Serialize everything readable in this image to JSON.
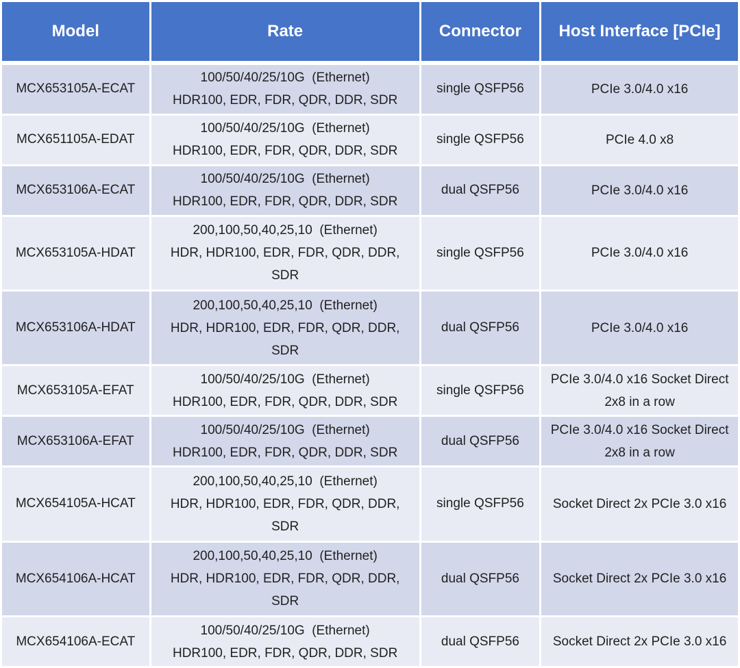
{
  "colors": {
    "header_bg": "#4674C8",
    "row_odd_bg": "#D3D7EA",
    "row_even_bg": "#E9EBF4",
    "header_text": "#FFFFFF",
    "body_text": "#212121",
    "grid": "#FFFFFF"
  },
  "chart_data": {
    "type": "table",
    "columns": [
      "Model",
      "Rate",
      "Connector",
      "Host Interface [PCIe]"
    ],
    "rows": [
      {
        "model": "MCX653105A-ECAT",
        "rate": [
          "100/50/40/25/10G  (Ethernet)",
          "HDR100, EDR, FDR, QDR, DDR, SDR"
        ],
        "connector": "single QSFP56",
        "host": [
          "PCIe 3.0/4.0 x16"
        ]
      },
      {
        "model": "MCX651105A-EDAT",
        "rate": [
          "100/50/40/25/10G  (Ethernet)",
          "HDR100, EDR, FDR, QDR, DDR, SDR"
        ],
        "connector": "single QSFP56",
        "host": [
          "PCIe 4.0 x8"
        ]
      },
      {
        "model": "MCX653106A-ECAT",
        "rate": [
          "100/50/40/25/10G  (Ethernet)",
          "HDR100, EDR, FDR, QDR, DDR, SDR"
        ],
        "connector": "dual QSFP56",
        "host": [
          "PCIe 3.0/4.0 x16"
        ]
      },
      {
        "model": "MCX653105A-HDAT",
        "rate": [
          "200,100,50,40,25,10  (Ethernet)",
          "HDR, HDR100, EDR, FDR, QDR, DDR, SDR"
        ],
        "connector": "single QSFP56",
        "host": [
          "PCIe 3.0/4.0 x16"
        ]
      },
      {
        "model": "MCX653106A-HDAT",
        "rate": [
          "200,100,50,40,25,10  (Ethernet)",
          "HDR, HDR100, EDR, FDR, QDR, DDR, SDR"
        ],
        "connector": "dual QSFP56",
        "host": [
          "PCIe 3.0/4.0 x16"
        ]
      },
      {
        "model": "MCX653105A-EFAT",
        "rate": [
          "100/50/40/25/10G  (Ethernet)",
          "HDR100, EDR, FDR, QDR, DDR, SDR"
        ],
        "connector": "single QSFP56",
        "host": [
          "PCIe 3.0/4.0 x16 Socket Direct",
          "2x8 in a row"
        ]
      },
      {
        "model": "MCX653106A-EFAT",
        "rate": [
          "100/50/40/25/10G  (Ethernet)",
          "HDR100, EDR, FDR, QDR, DDR, SDR"
        ],
        "connector": "dual QSFP56",
        "host": [
          "PCIe 3.0/4.0 x16 Socket Direct",
          "2x8 in a row"
        ]
      },
      {
        "model": "MCX654105A-HCAT",
        "rate": [
          "200,100,50,40,25,10  (Ethernet)",
          "HDR, HDR100, EDR, FDR, QDR, DDR, SDR"
        ],
        "connector": "single QSFP56",
        "host": [
          "Socket Direct 2x PCIe 3.0 x16"
        ]
      },
      {
        "model": "MCX654106A-HCAT",
        "rate": [
          "200,100,50,40,25,10  (Ethernet)",
          "HDR, HDR100, EDR, FDR, QDR, DDR, SDR"
        ],
        "connector": "dual QSFP56",
        "host": [
          "Socket Direct 2x PCIe 3.0 x16"
        ]
      },
      {
        "model": "MCX654106A-ECAT",
        "rate": [
          "100/50/40/25/10G  (Ethernet)",
          "HDR100, EDR, FDR, QDR, DDR, SDR"
        ],
        "connector": "dual QSFP56",
        "host": [
          "Socket Direct 2x PCIe 3.0 x16"
        ]
      }
    ]
  }
}
